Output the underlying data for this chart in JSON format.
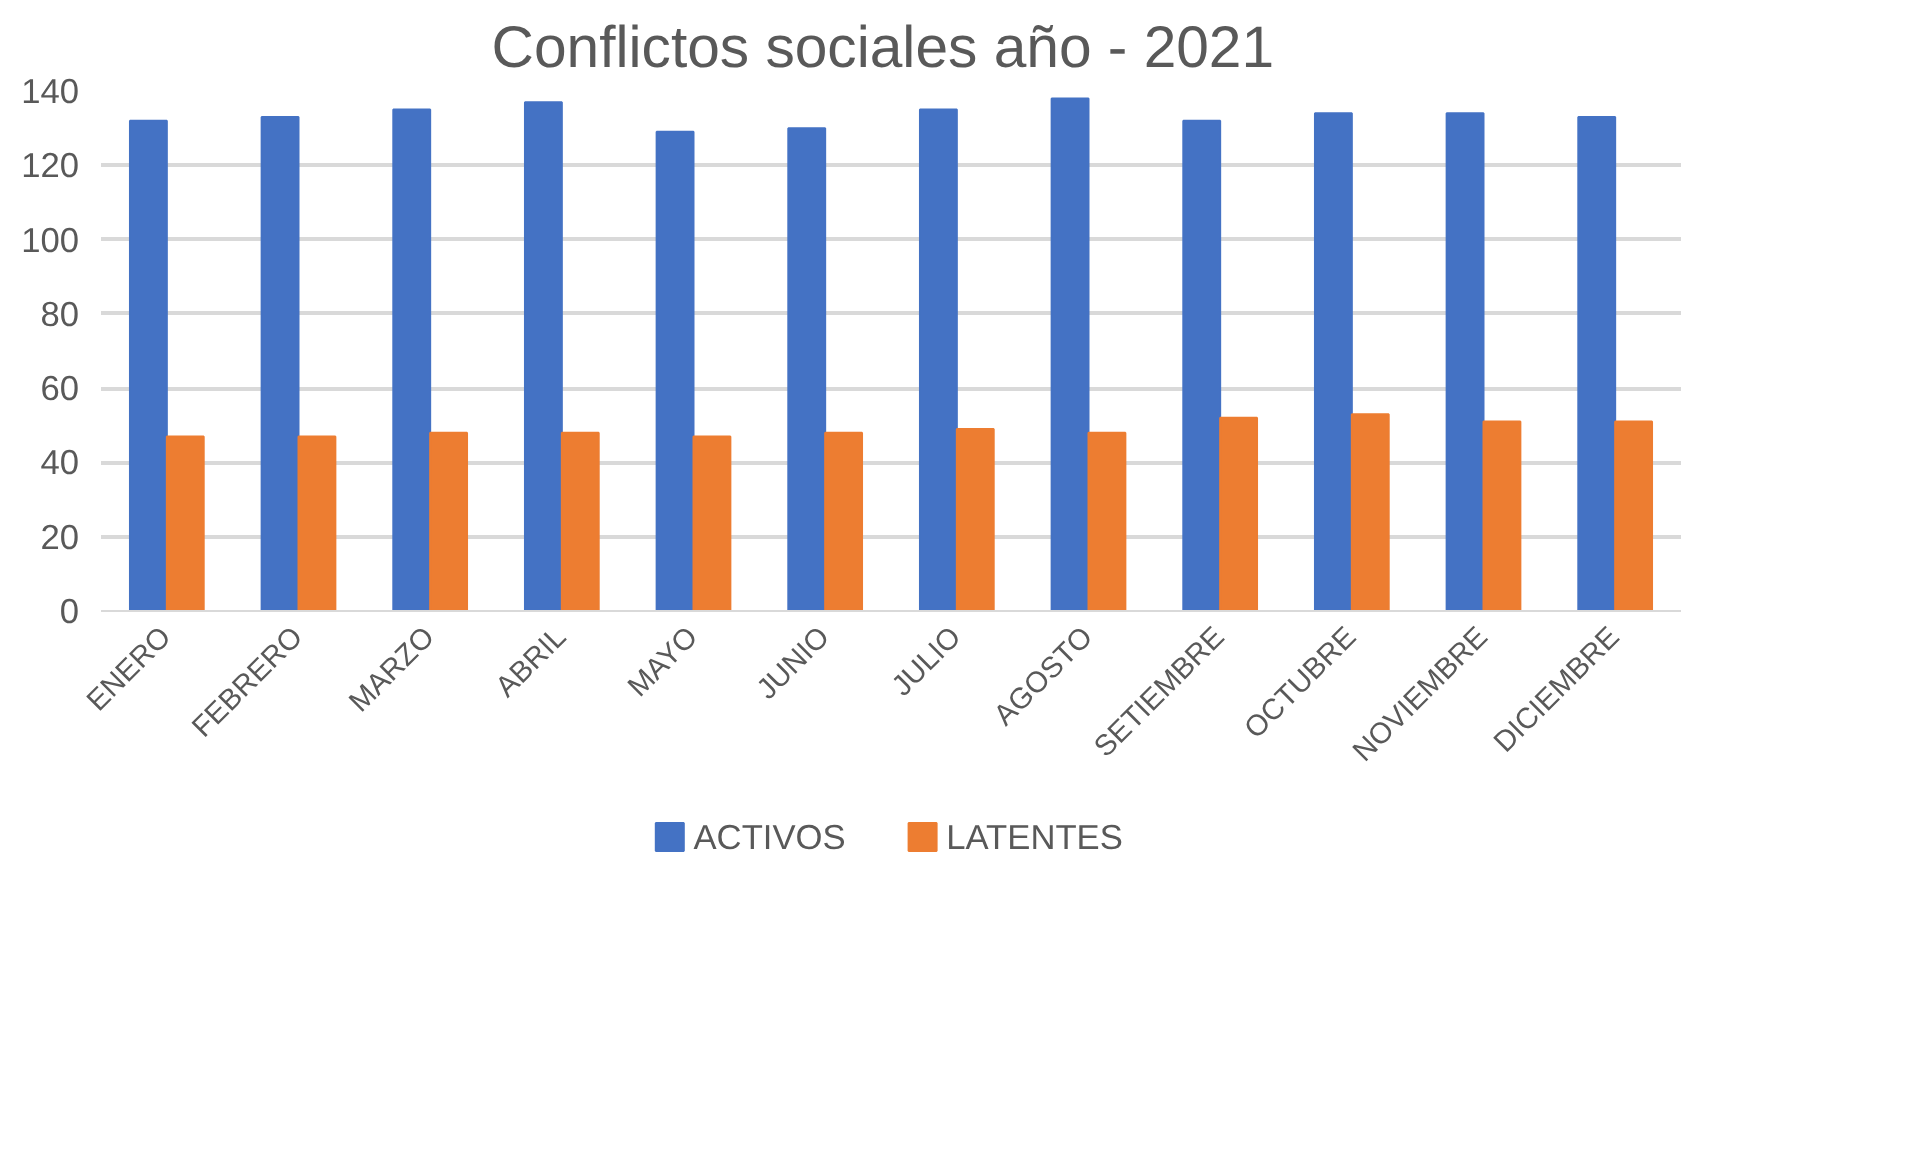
{
  "chart_data": {
    "type": "bar",
    "title": "Conflictos sociales año -  2021",
    "categories": [
      "ENERO",
      "FEBRERO",
      "MARZO",
      "ABRIL",
      "MAYO",
      "JUNIO",
      "JULIO",
      "AGOSTO",
      "SETIEMBRE",
      "OCTUBRE",
      "NOVIEMBRE",
      "DICIEMBRE"
    ],
    "series": [
      {
        "name": "ACTIVOS",
        "color": "#4472c4",
        "values": [
          132,
          133,
          135,
          137,
          129,
          130,
          135,
          138,
          132,
          134,
          134,
          133
        ]
      },
      {
        "name": "LATENTES",
        "color": "#ed7d31",
        "values": [
          47,
          47,
          48,
          48,
          47,
          48,
          49,
          48,
          52,
          53,
          51,
          51
        ]
      }
    ],
    "ylim": [
      0,
      140
    ],
    "yticks": [
      0,
      20,
      40,
      60,
      80,
      100,
      120,
      140
    ],
    "grid": "y",
    "legend": "bottom"
  }
}
